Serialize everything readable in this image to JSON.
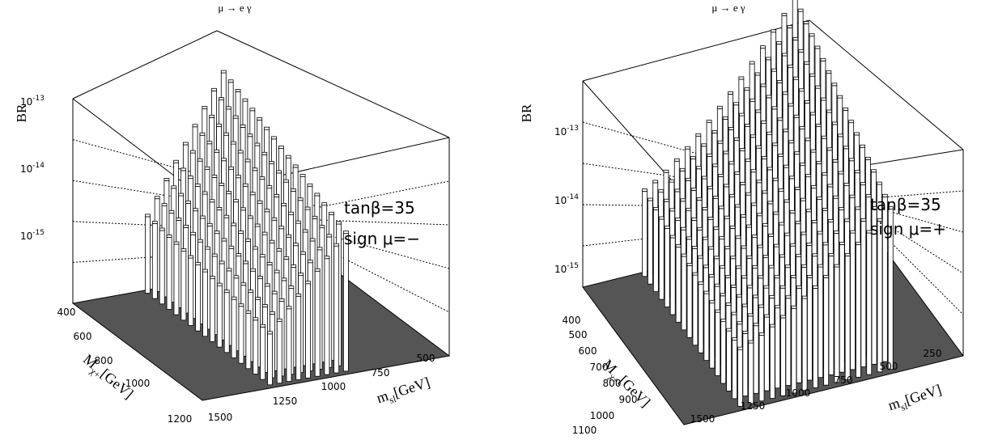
{
  "panels": [
    {
      "title": "μ → e γ",
      "y_label": "BR",
      "y_ticks": [
        {
          "base": "10",
          "exp": "-13"
        },
        {
          "base": "10",
          "exp": "-14"
        },
        {
          "base": "10",
          "exp": "-15"
        }
      ],
      "x_ticks": [
        "400",
        "600",
        "800",
        "1000",
        "1200"
      ],
      "x_label": {
        "main": "M",
        "sub": "χ+",
        "unit": "[GeV]"
      },
      "z_ticks": [
        "1500",
        "1250",
        "1000",
        "750",
        "500"
      ],
      "z_label": {
        "main": "m",
        "sub": "sl",
        "unit": "[GeV]"
      },
      "annotation": [
        "tanβ=35",
        "sign μ=−"
      ]
    },
    {
      "title": "μ → e γ",
      "y_label": "BR",
      "y_ticks": [
        {
          "base": "10",
          "exp": "-13"
        },
        {
          "base": "10",
          "exp": "-14"
        },
        {
          "base": "10",
          "exp": "-15"
        }
      ],
      "x_ticks": [
        "400",
        "500",
        "600",
        "700",
        "800",
        "900",
        "1000",
        "1100"
      ],
      "x_label": {
        "main": "M",
        "sub": "χ+",
        "unit": "[GeV]"
      },
      "z_ticks": [
        "1500",
        "1250",
        "1000",
        "750",
        "500",
        "250"
      ],
      "z_label": {
        "main": "m",
        "sub": "sl",
        "unit": "[GeV]"
      },
      "annotation": [
        "tanβ=35",
        "sign μ=+"
      ]
    }
  ]
}
